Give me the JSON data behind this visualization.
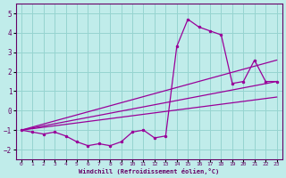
{
  "xlabel": "Windchill (Refroidissement éolien,°C)",
  "bg_color": "#c0ecea",
  "grid_color": "#96d4d0",
  "line_color": "#990099",
  "xlim": [
    -0.5,
    23.5
  ],
  "ylim": [
    -2.5,
    5.5
  ],
  "yticks": [
    -2,
    -1,
    0,
    1,
    2,
    3,
    4,
    5
  ],
  "xticks": [
    0,
    1,
    2,
    3,
    4,
    5,
    6,
    7,
    8,
    9,
    10,
    11,
    12,
    13,
    14,
    15,
    16,
    17,
    18,
    19,
    20,
    21,
    22,
    23
  ],
  "series": [
    {
      "x": [
        0,
        1,
        2,
        3,
        4,
        5,
        6,
        7,
        8,
        9,
        10,
        11,
        12,
        13,
        14,
        15,
        16,
        17,
        18,
        19,
        20,
        21,
        22,
        23
      ],
      "y": [
        -1.0,
        -1.1,
        -1.2,
        -1.1,
        -1.3,
        -1.6,
        -1.8,
        -1.7,
        -1.8,
        -1.6,
        -1.1,
        -1.0,
        -1.4,
        -1.3,
        3.3,
        4.7,
        4.3,
        4.1,
        3.9,
        1.4,
        1.5,
        2.6,
        1.5,
        1.5
      ]
    },
    {
      "x": [
        0,
        23
      ],
      "y": [
        -1.0,
        2.6
      ]
    },
    {
      "x": [
        0,
        23
      ],
      "y": [
        -1.0,
        1.5
      ]
    },
    {
      "x": [
        0,
        23
      ],
      "y": [
        -1.0,
        0.7
      ]
    }
  ]
}
